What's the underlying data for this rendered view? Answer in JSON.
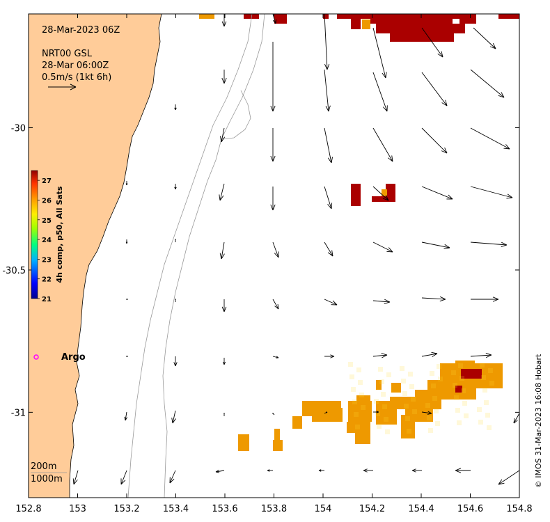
{
  "header": {
    "datetime": "28-Mar-2023 06Z",
    "product": "NRT00 GSL",
    "product_time": "28-Mar 06:00Z",
    "scale_text": "0.5m/s (1kt 6h)"
  },
  "axes": {
    "x_ticks": [
      152.8,
      153,
      153.2,
      153.4,
      153.6,
      153.8,
      154,
      154.2,
      154.4,
      154.6,
      154.8
    ],
    "x_tick_labels": [
      "152.8",
      "153",
      "153.2",
      "153.4",
      "153.6",
      "153.8",
      "154",
      "154.2",
      "154.4",
      "154.6",
      "154.8"
    ],
    "y_ticks": [
      -30,
      -30.5,
      -31
    ],
    "y_tick_labels": [
      "-30",
      "-30.5",
      "-31"
    ],
    "xlim": [
      152.8,
      154.8
    ],
    "ylim": [
      -31.3,
      -29.6
    ]
  },
  "colorbar": {
    "label": "4h comp, p50, All Sats",
    "ticks": [
      "27",
      "26",
      "25",
      "24",
      "23",
      "22",
      "21"
    ],
    "range": [
      21,
      27.5
    ],
    "colormap": "jet"
  },
  "isobaths": {
    "shallow_label": "200m",
    "deep_label": "1000m"
  },
  "platform": {
    "name": "Argo",
    "color": "#ff00ff"
  },
  "credit": "© IMOS 31-Mar-2023 16:08 Hobart",
  "colors": {
    "land": "#ffcc99",
    "sst_warm": "#aa0000",
    "sst_mid": "#ee9900",
    "arrow": "#000000"
  }
}
